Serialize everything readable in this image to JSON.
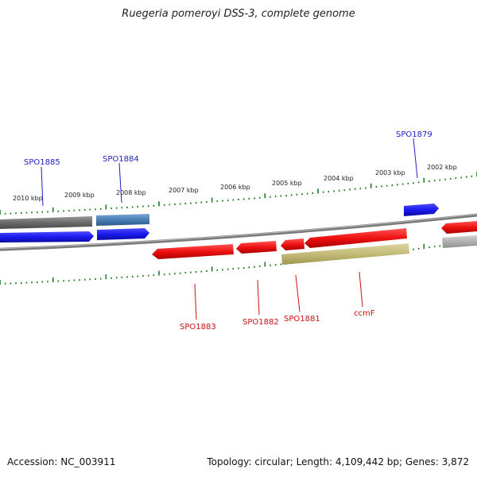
{
  "title": "Ruegeria pomeroyi DSS-3, complete genome",
  "footer": {
    "accession": "Accession: NC_003911",
    "topology": "Topology: circular; Length: 4,109,442 bp; Genes: 3,872"
  },
  "colors": {
    "backbone": "#888888",
    "forward_gene": "#1a1aee",
    "reverse_gene": "#ee1111",
    "forward_label": "#1f1fbf",
    "reverse_label": "#cc1111",
    "tick": "#1b7a1b",
    "gray_feature": "#707070",
    "steelblue_feature": "#4a7fb5",
    "olive_feature": "#c8c080",
    "lightgray_feature": "#b8b8b8"
  },
  "scale_labels": [
    {
      "text": "2010 kbp"
    },
    {
      "text": "2009 kbp"
    },
    {
      "text": "2008 kbp"
    },
    {
      "text": "2007 kbp"
    },
    {
      "text": "2006 kbp"
    },
    {
      "text": "2005 kbp"
    },
    {
      "text": "2004 kbp"
    },
    {
      "text": "2003 kbp"
    },
    {
      "text": "2002 kbp"
    }
  ],
  "gene_labels": {
    "spo1885": "SPO1885",
    "spo1884": "SPO1884",
    "spo1879": "SPO1879",
    "spo1883": "SPO1883",
    "spo1882": "SPO1882",
    "spo1881": "SPO1881",
    "ccmf": "ccmF"
  }
}
